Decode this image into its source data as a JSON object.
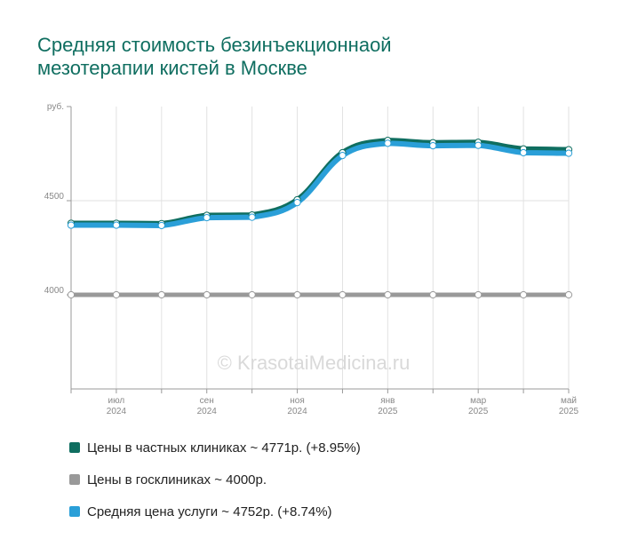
{
  "chart_data": {
    "type": "line",
    "title": [
      "Средняя стоимость безинъекционнаой",
      "мезотерапии кистей в Москве"
    ],
    "ylabel": "руб.",
    "ylim": [
      3500,
      5000
    ],
    "yticks": [
      4500,
      4000
    ],
    "grid": true,
    "watermark": "© KrasotaiMedicina.ru",
    "x_labels": [
      {
        "index": 1,
        "month": "июл",
        "year": "2024"
      },
      {
        "index": 3,
        "month": "сен",
        "year": "2024"
      },
      {
        "index": 5,
        "month": "ноя",
        "year": "2024"
      },
      {
        "index": 7,
        "month": "янв",
        "year": "2025"
      },
      {
        "index": 9,
        "month": "мар",
        "year": "2025"
      },
      {
        "index": 11,
        "month": "май",
        "year": "2025"
      }
    ],
    "series": [
      {
        "name": "Цены в частных клиниках ~ 4771р. (+8.95%)",
        "color": "#0f6e60",
        "values": [
          4380,
          4380,
          4378,
          4422,
          4424,
          4505,
          4755,
          4820,
          4808,
          4810,
          4775,
          4771
        ]
      },
      {
        "name": "Цены в госклиниках ~ 4000р.",
        "color": "#999999",
        "values": [
          4000,
          4000,
          4000,
          4000,
          4000,
          4000,
          4000,
          4000,
          4000,
          4000,
          4000,
          4000
        ]
      },
      {
        "name": "Средняя цена услуги ~ 4752р. (+8.74%)",
        "color": "#2a9fd8",
        "values": [
          4370,
          4370,
          4368,
          4410,
          4412,
          4490,
          4740,
          4805,
          4792,
          4794,
          4755,
          4752
        ]
      }
    ]
  }
}
